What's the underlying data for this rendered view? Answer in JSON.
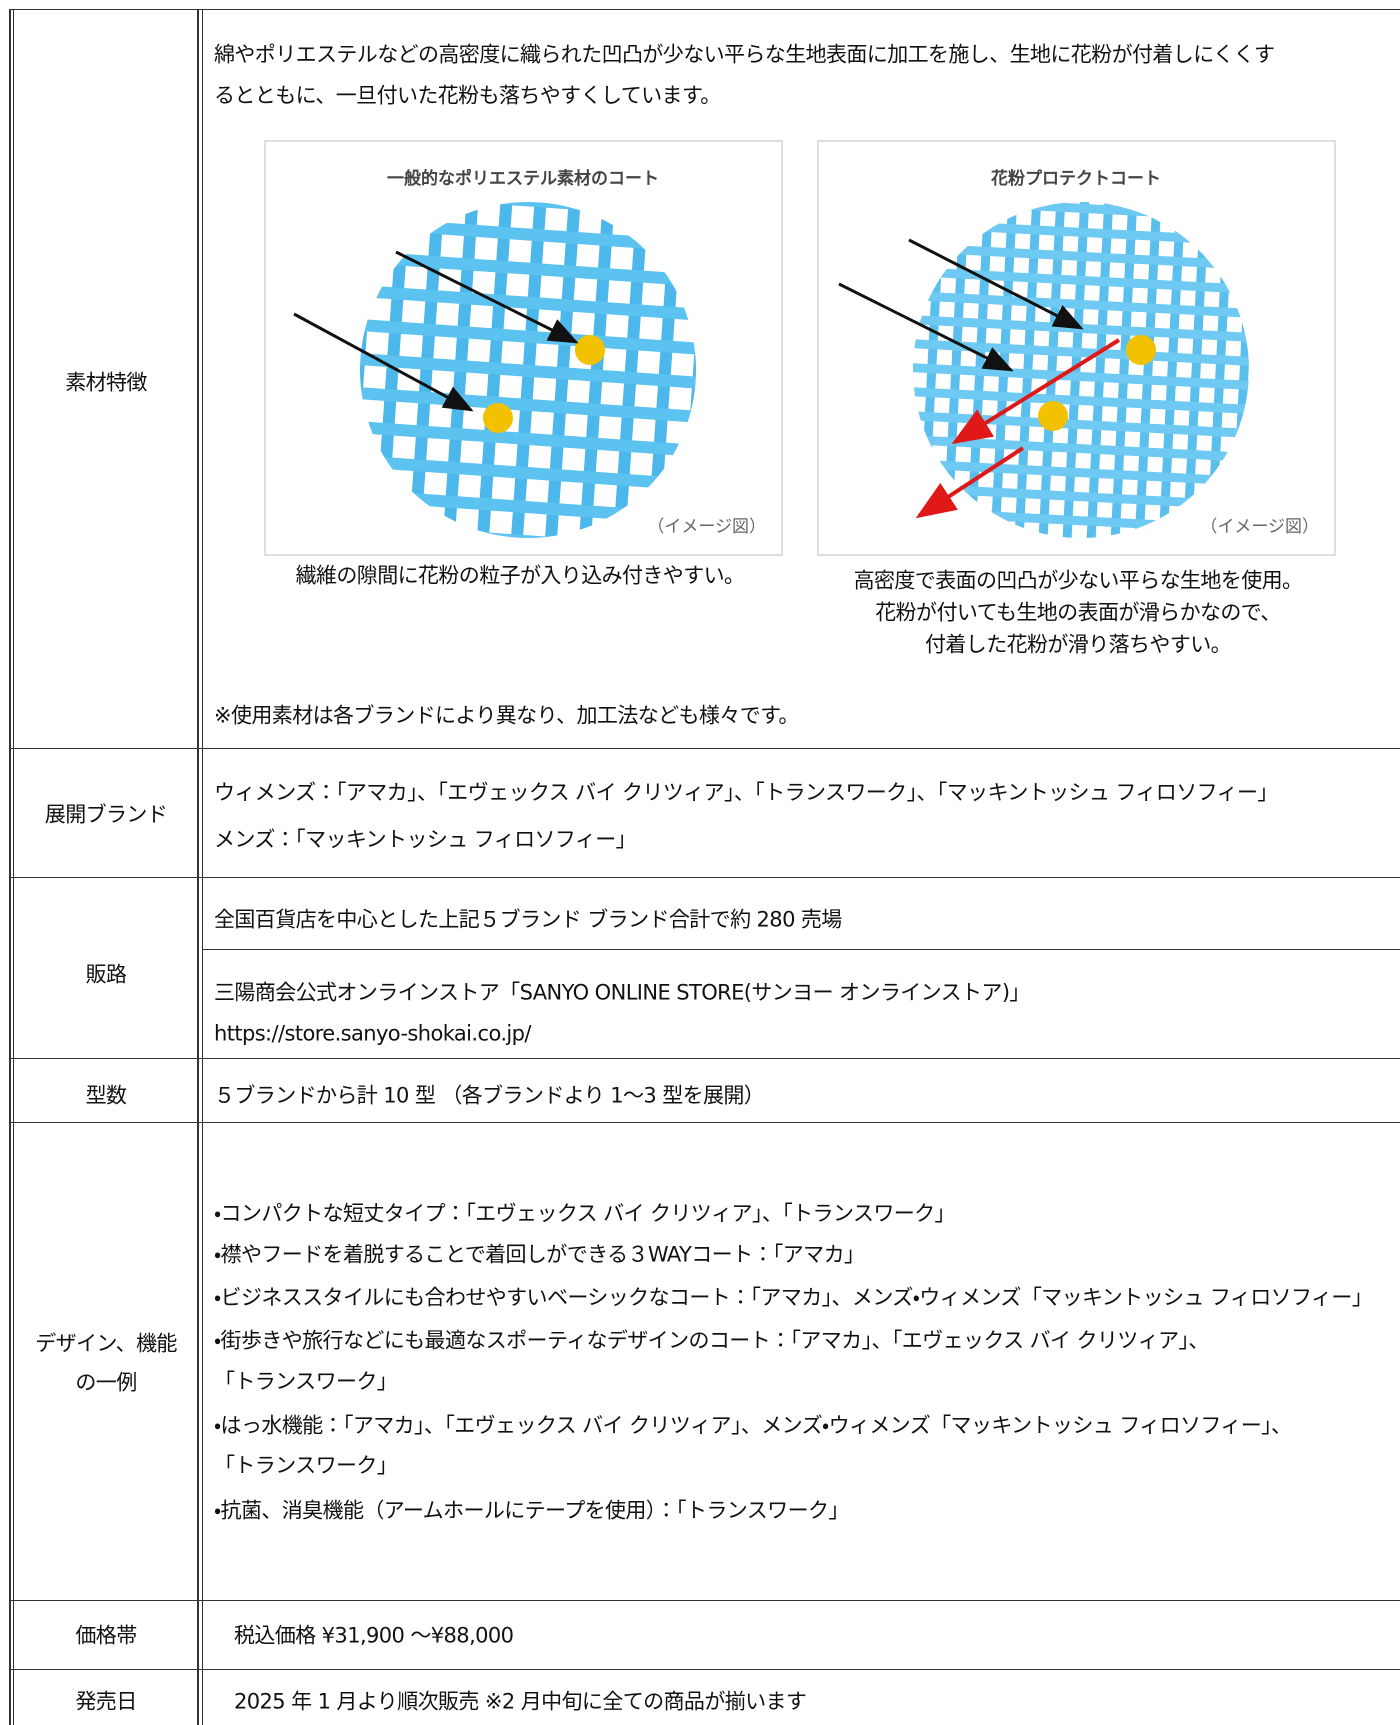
{
  "table": {
    "rows": [
      {
        "label": "素材特徴",
        "text": [
          "綿やポリエステルなどの高密度に織られた凹凸が少ない平らな生地表面に加工を施し、生地に花粉が付着しにくくす",
          "るとともに、一旦付いた花粉も落ちやすくしています。"
        ],
        "figures": [
          {
            "title": "一般的なポリエステル素材のコート",
            "note": "（イメージ図）",
            "caption": [
              "繊維の隙間に花粉の粒子が入り込み付きやすい。"
            ]
          },
          {
            "title": "花粉プロテクトコート",
            "note": "（イメージ図）",
            "caption": [
              "高密度で表面の凹凸が少ない平らな生地を使用。",
              "花粉が付いても生地の表面が滑らかなので、",
              "付着した花粉が滑り落ちやすい。"
            ]
          }
        ],
        "footnote": "※使用素材は各ブランドにより異なり、加工法なども様々です。"
      },
      {
        "label": "展開ブランド",
        "text": [
          "ウィメンズ：「アマカ」、「エヴェックス バイ クリツィア」、「トランスワーク」、「マッキントッシュ フィロソフィー」",
          "メンズ：「マッキントッシュ フィロソフィー」"
        ]
      },
      {
        "label": "販路",
        "cells": [
          [
            "全国百貨店を中心とした上記５ブランド ブランド合計で約 280 売場"
          ],
          [
            "三陽商会公式オンラインストア「SANYO ONLINE STORE(サンヨー オンラインストア)」",
            "https://store.sanyo-shokai.co.jp/"
          ]
        ]
      },
      {
        "label": "型数",
        "text": [
          "５ブランドから計 10 型 （各ブランドより 1～3 型を展開）"
        ]
      },
      {
        "label": [
          "デザイン、機能",
          "の一例"
        ],
        "text": [
          "・コンパクトな短丈タイプ：「エヴェックス バイ クリツィア」、「トランスワーク」",
          "・襟やフードを着脱することで着回しができる３WAYコート：「アマカ」",
          "・ビジネススタイルにも合わせやすいベーシックなコート：「アマカ」、メンズ・ウィメンズ「マッキントッシュ フィロソフィー」",
          "・街歩きや旅行などにも最適なスポーティなデザインのコート：「アマカ」、「エヴェックス バイ クリツィア」、",
          "「トランスワーク」",
          "・はっ水機能：「アマカ」、「エヴェックス バイ クリツィア」、メンズ・ウィメンズ「マッキントッシュ フィロソフィー」、",
          "「トランスワーク」",
          "・抗菌、消臭機能（アームホールにテープを使用）：「トランスワーク」"
        ]
      },
      {
        "label": "価格帯",
        "text": [
          "税込価格 ¥31,900 ～¥88,000"
        ]
      },
      {
        "label": "発売日",
        "text": [
          "2025 年 1 月より順次販売 ※2 月中旬に全ての商品が揃います"
        ]
      }
    ]
  }
}
